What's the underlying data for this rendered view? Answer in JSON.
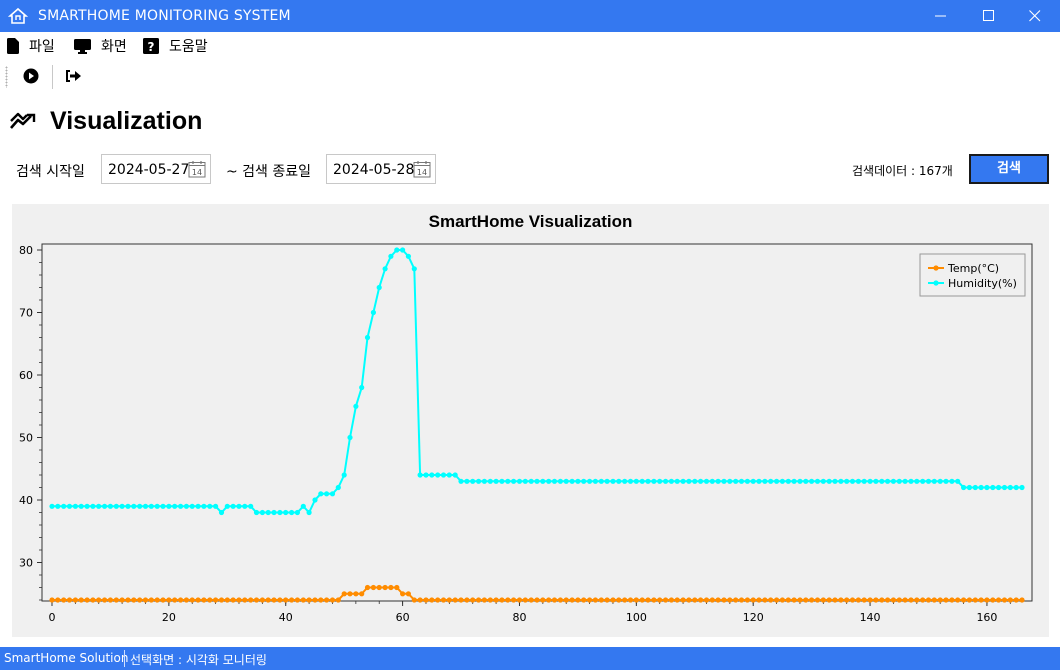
{
  "window": {
    "title": "SMARTHOME MONITORING SYSTEM"
  },
  "menu": {
    "file": "파일",
    "view": "화면",
    "help": "도움말"
  },
  "page": {
    "title": "Visualization"
  },
  "search": {
    "start_label": "검색 시작일",
    "start_date": "2024-05-27",
    "end_label": "~ 검색 종료일",
    "end_date": "2024-05-28",
    "calendar_badge": "14",
    "count_text": "검색데이터 : 167개",
    "button_label": "검색"
  },
  "chart_data": {
    "type": "line",
    "title": "SmartHome Visualization",
    "xlabel": "",
    "ylabel": "",
    "xlim": [
      0,
      166
    ],
    "ylim": [
      24,
      80
    ],
    "x_ticks": [
      0,
      20,
      40,
      60,
      80,
      100,
      120,
      140,
      160
    ],
    "y_ticks": [
      30,
      40,
      50,
      60,
      70,
      80
    ],
    "grid": false,
    "legend_position": "top-right",
    "series": [
      {
        "name": "Temp(°C)",
        "color": "#ff8c00",
        "segments": [
          {
            "from": 0,
            "to": 49,
            "value": 24
          },
          {
            "from": 50,
            "to": 53,
            "value": 25
          },
          {
            "from": 54,
            "to": 59,
            "value": 26
          },
          {
            "from": 60,
            "to": 61,
            "value": 25
          },
          {
            "from": 62,
            "to": 166,
            "value": 24
          }
        ]
      },
      {
        "name": "Humidity(%)",
        "color": "#00ffff",
        "segments": [
          {
            "from": 0,
            "to": 28,
            "value": 39
          },
          {
            "from": 29,
            "to": 29,
            "value": 38
          },
          {
            "from": 30,
            "to": 34,
            "value": 39
          },
          {
            "from": 35,
            "to": 42,
            "value": 38
          },
          {
            "from": 43,
            "to": 43,
            "value": 39
          },
          {
            "from": 44,
            "to": 44,
            "value": 38
          },
          {
            "from": 45,
            "to": 45,
            "value": 40
          },
          {
            "from": 46,
            "to": 48,
            "value": 41
          },
          {
            "from": 49,
            "to": 49,
            "value": 42
          },
          {
            "from": 50,
            "to": 50,
            "value": 44
          },
          {
            "from": 51,
            "to": 51,
            "value": 50
          },
          {
            "from": 52,
            "to": 52,
            "value": 55
          },
          {
            "from": 53,
            "to": 53,
            "value": 58
          },
          {
            "from": 54,
            "to": 54,
            "value": 66
          },
          {
            "from": 55,
            "to": 55,
            "value": 70
          },
          {
            "from": 56,
            "to": 56,
            "value": 74
          },
          {
            "from": 57,
            "to": 57,
            "value": 77
          },
          {
            "from": 58,
            "to": 58,
            "value": 79
          },
          {
            "from": 59,
            "to": 60,
            "value": 80
          },
          {
            "from": 61,
            "to": 61,
            "value": 79
          },
          {
            "from": 62,
            "to": 62,
            "value": 77
          },
          {
            "from": 63,
            "to": 69,
            "value": 44
          },
          {
            "from": 70,
            "to": 155,
            "value": 43
          },
          {
            "from": 156,
            "to": 166,
            "value": 42
          }
        ]
      }
    ]
  },
  "statusbar": {
    "app_name": "SmartHome Solution",
    "screen_text": "선택화면 : 시각화 모니터링"
  },
  "colors": {
    "accent": "#3478f0"
  }
}
